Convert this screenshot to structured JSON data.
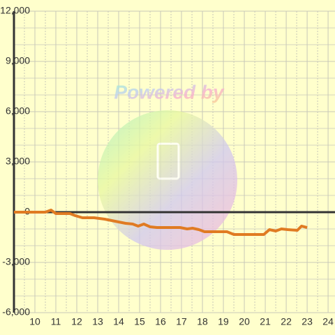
{
  "chart_data": {
    "type": "line",
    "watermark": "Powered by",
    "x": [
      9,
      10.5,
      10.77,
      11,
      11.67,
      11.93,
      12.27,
      12.83,
      13.33,
      13.83,
      14.33,
      14.67,
      14.93,
      15.2,
      15.5,
      15.83,
      16.93,
      17.27,
      17.53,
      17.83,
      18.1,
      19.17,
      19.5,
      20.93,
      21.2,
      21.5,
      21.77,
      22.07,
      22.53,
      22.73,
      23
    ],
    "series": [
      {
        "color": "#e07b22",
        "values": [
          0,
          0,
          125,
          -83,
          -83,
          -208,
          -333,
          -333,
          -417,
          -542,
          -667,
          -708,
          -833,
          -708,
          -875,
          -917,
          -917,
          -1000,
          -958,
          -1042,
          -1167,
          -1167,
          -1333,
          -1333,
          -1042,
          -1125,
          -1000,
          -1042,
          -1083,
          -833,
          -917
        ]
      }
    ],
    "xlim": [
      9,
      24.33
    ],
    "xticks": [
      10,
      11,
      12,
      13,
      14,
      15,
      16,
      17,
      18,
      19,
      20,
      21,
      22,
      23,
      24
    ],
    "ylim": [
      -6000,
      12000
    ],
    "yticks": [
      {
        "value": -6000,
        "label": "-6,000"
      },
      {
        "value": -3000,
        "label": "-3,000"
      },
      0,
      {
        "value": 3000,
        "label": "3,000"
      },
      {
        "value": 6000,
        "label": "6,000"
      },
      {
        "value": 9000,
        "label": "9,000"
      },
      {
        "value": 12000,
        "label": "12,000"
      }
    ],
    "grid": true
  }
}
